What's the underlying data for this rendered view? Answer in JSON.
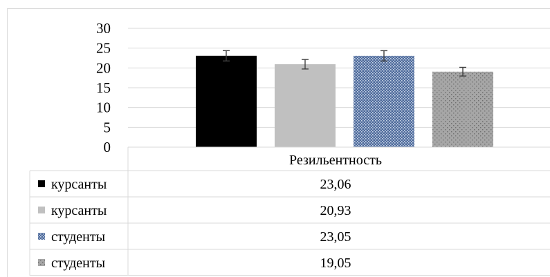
{
  "chart_data": {
    "type": "bar",
    "categories": [
      "Резильентность"
    ],
    "series": [
      {
        "name": "курсанты",
        "values": [
          23.06
        ],
        "display": "23,06",
        "color": "#000000",
        "pattern": "solid",
        "error": 1.3
      },
      {
        "name": "курсанты",
        "values": [
          20.93
        ],
        "display": "20,93",
        "color": "#c0c0c0",
        "pattern": "solid",
        "error": 1.2
      },
      {
        "name": "студенты",
        "values": [
          23.05
        ],
        "display": "23,05",
        "color": "#4d6a9b",
        "pattern": "dots-light",
        "error": 1.3
      },
      {
        "name": "студенты",
        "values": [
          19.05
        ],
        "display": "19,05",
        "color": "#a6a6a6",
        "pattern": "dots-dark",
        "error": 1.1
      }
    ],
    "ylim": [
      0,
      30
    ],
    "yticks": [
      "0",
      "5",
      "10",
      "15",
      "20",
      "25",
      "30"
    ],
    "grid": true,
    "legend": "data-table",
    "error_bars": true
  }
}
